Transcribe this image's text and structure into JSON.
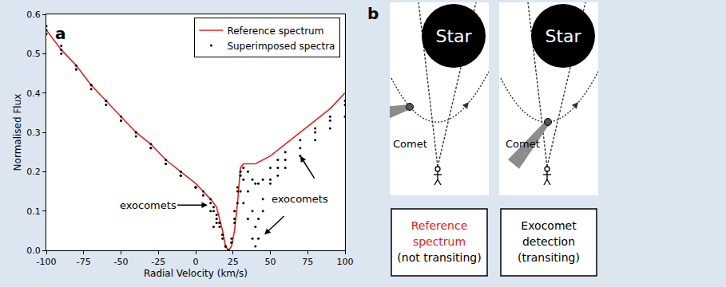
{
  "chart_data": {
    "type": "line",
    "panel_label": "a",
    "x_label": "Radial Velocity (km/s)",
    "y_label": "Normalised Flux",
    "xlim": [
      -100,
      100
    ],
    "xticks": [
      -100,
      -75,
      -50,
      -25,
      0,
      25,
      50,
      75,
      100
    ],
    "ylim": [
      0,
      0.6
    ],
    "yticks": [
      {
        "value": 0,
        "label": "0.0"
      },
      0.1,
      0.2,
      0.3,
      0.4,
      0.5,
      0.6
    ],
    "grid": false,
    "legend": "upper right",
    "series": [
      {
        "name": "Reference spectrum",
        "type": "line",
        "color": "#e8201e",
        "line_style": "solid",
        "x": [
          -100,
          -90,
          -80,
          -70,
          -60,
          -50,
          -40,
          -30,
          -20,
          -10,
          0,
          5,
          10,
          14,
          18,
          20,
          22,
          24,
          26,
          28,
          30,
          32,
          35,
          40,
          50,
          60,
          70,
          80,
          90,
          100
        ],
        "values": [
          0.56,
          0.51,
          0.47,
          0.42,
          0.38,
          0.34,
          0.3,
          0.27,
          0.23,
          0.2,
          0.17,
          0.15,
          0.13,
          0.11,
          0.05,
          0.01,
          0.0,
          0.01,
          0.05,
          0.12,
          0.21,
          0.22,
          0.22,
          0.22,
          0.24,
          0.27,
          0.3,
          0.33,
          0.36,
          0.4
        ]
      },
      {
        "name": "Superimposed spectra",
        "type": "scatter",
        "color": "#000000",
        "marker": "circle",
        "x": [
          -100,
          -90,
          -80,
          -70,
          -60,
          -50,
          -40,
          -30,
          -20,
          -10,
          0,
          5,
          10,
          12,
          14,
          16,
          18,
          20,
          22,
          24,
          26,
          28,
          30,
          32,
          35,
          38,
          40,
          42,
          45,
          50,
          55,
          60,
          70,
          80,
          90,
          100,
          -100,
          -90,
          -80,
          -70,
          -60,
          -50,
          -40,
          -30,
          -20,
          -10,
          0,
          5,
          10,
          12,
          14,
          16,
          18,
          20,
          22,
          24,
          26,
          28,
          30,
          32,
          35,
          38,
          40,
          42,
          45,
          50,
          55,
          60,
          70,
          80,
          90,
          100,
          -100,
          -90,
          -80,
          -70,
          -60,
          -50,
          -40,
          -30,
          -20,
          -10,
          0,
          5,
          10,
          12,
          14,
          16,
          18,
          20,
          22,
          24,
          26,
          28,
          30,
          32,
          35,
          38,
          40,
          42,
          45,
          50,
          55,
          60,
          70,
          80,
          90,
          100
        ],
        "values": [
          0.56,
          0.51,
          0.46,
          0.42,
          0.38,
          0.33,
          0.3,
          0.26,
          0.22,
          0.19,
          0.16,
          0.14,
          0.1,
          0.06,
          0.08,
          0.07,
          0.04,
          0.01,
          0.0,
          0.02,
          0.07,
          0.12,
          0.15,
          0.12,
          0.08,
          0.03,
          0.01,
          0.03,
          0.1,
          0.17,
          0.19,
          0.21,
          0.24,
          0.28,
          0.31,
          0.34,
          0.55,
          0.5,
          0.46,
          0.41,
          0.37,
          0.33,
          0.29,
          0.26,
          0.22,
          0.19,
          0.16,
          0.14,
          0.12,
          0.1,
          0.07,
          0.06,
          0.03,
          0.01,
          0.0,
          0.03,
          0.1,
          0.16,
          0.19,
          0.18,
          0.15,
          0.1,
          0.06,
          0.08,
          0.13,
          0.18,
          0.21,
          0.23,
          0.26,
          0.3,
          0.33,
          0.37,
          0.57,
          0.52,
          0.47,
          0.42,
          0.38,
          0.34,
          0.3,
          0.27,
          0.23,
          0.2,
          0.16,
          0.15,
          0.13,
          0.11,
          0.09,
          0.07,
          0.04,
          0.01,
          0.0,
          0.02,
          0.08,
          0.15,
          0.2,
          0.21,
          0.2,
          0.18,
          0.17,
          0.17,
          0.18,
          0.21,
          0.23,
          0.25,
          0.28,
          0.31,
          0.34,
          0.38
        ]
      }
    ],
    "annotations": [
      {
        "text": "exocomets",
        "x": -32,
        "y": 0.115,
        "arrows": [
          {
            "from": [
              -13,
              0.115
            ],
            "to": [
              8,
              0.115
            ]
          }
        ]
      },
      {
        "text": "exocomets",
        "x": 70,
        "y": 0.13,
        "arrows": [
          {
            "from": [
              60,
              0.09
            ],
            "to": [
              46,
              0.04
            ]
          },
          {
            "from": [
              80,
              0.18
            ],
            "to": [
              70,
              0.24
            ]
          }
        ]
      }
    ]
  },
  "panel_b": {
    "panel_label": "b",
    "diagrams": [
      {
        "star": "Star",
        "comet": "Comet",
        "transiting": false,
        "caption": [
          {
            "text": "Reference",
            "color": "#e8201e"
          },
          {
            "text": "spectrum",
            "color": "#e8201e"
          },
          {
            "text": "(not transiting)",
            "color": "#000000"
          }
        ]
      },
      {
        "star": "Star",
        "comet": "Comet",
        "transiting": true,
        "caption": [
          {
            "text": "Exocomet",
            "color": "#000000"
          },
          {
            "text": "detection",
            "color": "#000000"
          },
          {
            "text": "(transiting)",
            "color": "#000000"
          }
        ]
      }
    ]
  }
}
